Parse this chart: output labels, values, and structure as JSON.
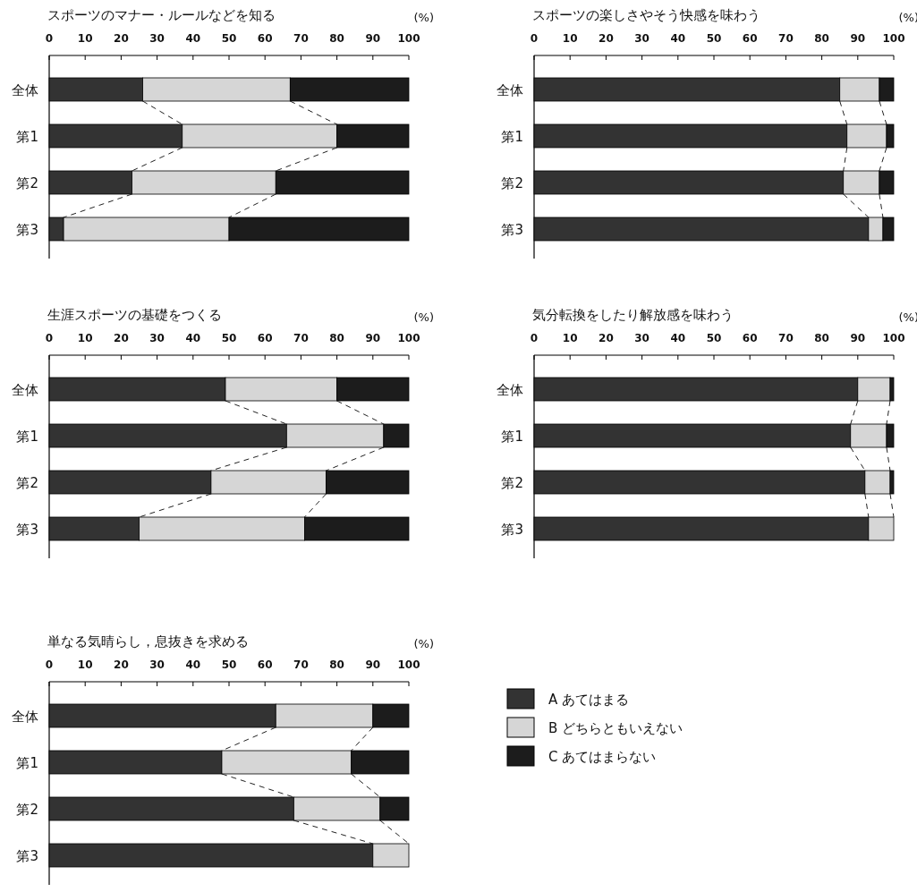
{
  "chart_data": [
    {
      "type": "bar",
      "orientation": "horizontal",
      "stacked": true,
      "title": "スポーツのマナー・ルールなどを知る",
      "xlabel": "(%)",
      "categories": [
        "全体",
        "第1",
        "第2",
        "第3"
      ],
      "xlim": [
        0,
        100
      ],
      "xticks": [
        0,
        10,
        20,
        30,
        40,
        50,
        60,
        70,
        80,
        90,
        100
      ],
      "legend": false,
      "series": [
        {
          "color": "#333333",
          "values": [
            26,
            37,
            23,
            4
          ]
        },
        {
          "color": "#d6d6d6",
          "values": [
            41,
            43,
            40,
            46
          ]
        },
        {
          "color": "#1c1c1c",
          "values": [
            33,
            20,
            37,
            50
          ]
        }
      ]
    },
    {
      "type": "bar",
      "orientation": "horizontal",
      "stacked": true,
      "title": "スポーツの楽しさやそう快感を味わう",
      "xlabel": "(%)",
      "categories": [
        "全体",
        "第1",
        "第2",
        "第3"
      ],
      "xlim": [
        0,
        100
      ],
      "xticks": [
        0,
        10,
        20,
        30,
        40,
        50,
        60,
        70,
        80,
        90,
        100
      ],
      "legend": false,
      "series": [
        {
          "color": "#333333",
          "values": [
            85,
            87,
            86,
            93
          ]
        },
        {
          "color": "#d6d6d6",
          "values": [
            11,
            11,
            10,
            4
          ]
        },
        {
          "color": "#1c1c1c",
          "values": [
            4,
            2,
            4,
            3
          ]
        }
      ]
    },
    {
      "type": "bar",
      "orientation": "horizontal",
      "stacked": true,
      "title": "生涯スポーツの基礎をつくる",
      "xlabel": "(%)",
      "categories": [
        "全体",
        "第1",
        "第2",
        "第3"
      ],
      "xlim": [
        0,
        100
      ],
      "xticks": [
        0,
        10,
        20,
        30,
        40,
        50,
        60,
        70,
        80,
        90,
        100
      ],
      "legend": false,
      "series": [
        {
          "color": "#333333",
          "values": [
            49,
            66,
            45,
            25
          ]
        },
        {
          "color": "#d6d6d6",
          "values": [
            31,
            27,
            32,
            46
          ]
        },
        {
          "color": "#1c1c1c",
          "values": [
            20,
            7,
            23,
            29
          ]
        }
      ]
    },
    {
      "type": "bar",
      "orientation": "horizontal",
      "stacked": true,
      "title": "気分転換をしたり解放感を味わう",
      "xlabel": "(%)",
      "categories": [
        "全体",
        "第1",
        "第2",
        "第3"
      ],
      "xlim": [
        0,
        100
      ],
      "xticks": [
        0,
        10,
        20,
        30,
        40,
        50,
        60,
        70,
        80,
        90,
        100
      ],
      "legend": false,
      "series": [
        {
          "color": "#333333",
          "values": [
            90,
            88,
            92,
            93
          ]
        },
        {
          "color": "#d6d6d6",
          "values": [
            9,
            10,
            7,
            7
          ]
        },
        {
          "color": "#1c1c1c",
          "values": [
            1,
            2,
            1,
            0
          ]
        }
      ]
    },
    {
      "type": "bar",
      "orientation": "horizontal",
      "stacked": true,
      "title": "単なる気晴らし，息抜きを求める",
      "xlabel": "(%)",
      "categories": [
        "全体",
        "第1",
        "第2",
        "第3"
      ],
      "xlim": [
        0,
        100
      ],
      "xticks": [
        0,
        10,
        20,
        30,
        40,
        50,
        60,
        70,
        80,
        90,
        100
      ],
      "legend": "right",
      "series": [
        {
          "name": "A あてはまる",
          "color": "#333333",
          "values": [
            63,
            48,
            68,
            90
          ]
        },
        {
          "name": "B どちらともいえない",
          "color": "#d6d6d6",
          "values": [
            27,
            36,
            24,
            10
          ]
        },
        {
          "name": "C あてはまらない",
          "color": "#1c1c1c",
          "values": [
            10,
            16,
            8,
            0
          ]
        }
      ]
    }
  ]
}
